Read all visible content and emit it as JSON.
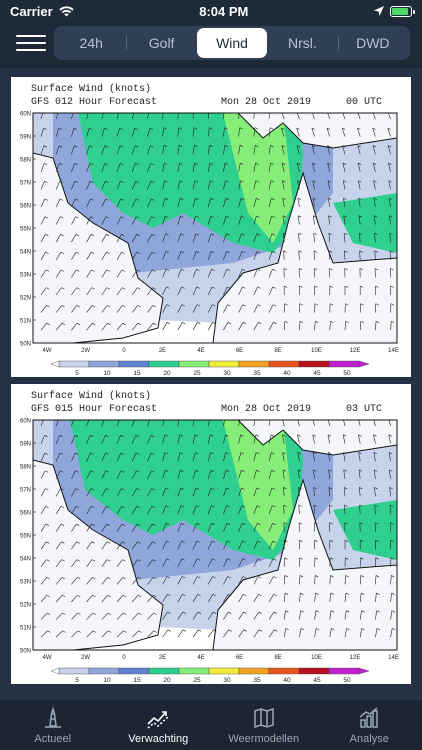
{
  "status": {
    "carrier": "Carrier",
    "time": "8:04 PM",
    "battery_level": 0.9
  },
  "nav": {
    "menu_icon": "hamburger-icon",
    "tabs": [
      {
        "label": "24h",
        "active": false
      },
      {
        "label": "Golf",
        "active": false
      },
      {
        "label": "Wind",
        "active": true
      },
      {
        "label": "Nrsl.",
        "active": false
      },
      {
        "label": "DWD",
        "active": false
      }
    ]
  },
  "maps": [
    {
      "title": "Surface Wind (knots)",
      "subtitle": "GFS 012 Hour Forecast",
      "date": "Mon 28 Oct 2019",
      "utc": "00 UTC"
    },
    {
      "title": "Surface Wind (knots)",
      "subtitle": "GFS 015 Hour Forecast",
      "date": "Mon 28 Oct 2019",
      "utc": "03 UTC"
    }
  ],
  "map_axes": {
    "lat_labels": [
      "60N",
      "59N",
      "58N",
      "57N",
      "56N",
      "55N",
      "54N",
      "53N",
      "52N",
      "51N",
      "50N"
    ],
    "lon_labels": [
      "4W",
      "2W",
      "0",
      "2E",
      "4E",
      "6E",
      "8E",
      "10E",
      "12E",
      "14E"
    ]
  },
  "legend": {
    "ticks": [
      "5",
      "10",
      "15",
      "20",
      "25",
      "30",
      "35",
      "40",
      "45",
      "50"
    ],
    "colors": [
      "#ffffff",
      "#c6d3ea",
      "#8fa6da",
      "#5e82cf",
      "#2fcf8f",
      "#86ee78",
      "#f0ec3a",
      "#f4a120",
      "#e8541c",
      "#b8101c",
      "#c020d0"
    ]
  },
  "tab_bar": [
    {
      "label": "Actueel",
      "icon": "buoy-icon",
      "active": false
    },
    {
      "label": "Verwachting",
      "icon": "trend-icon",
      "active": true
    },
    {
      "label": "Weermodellen",
      "icon": "map-icon",
      "active": false
    },
    {
      "label": "Analyse",
      "icon": "chart-icon",
      "active": false
    }
  ]
}
